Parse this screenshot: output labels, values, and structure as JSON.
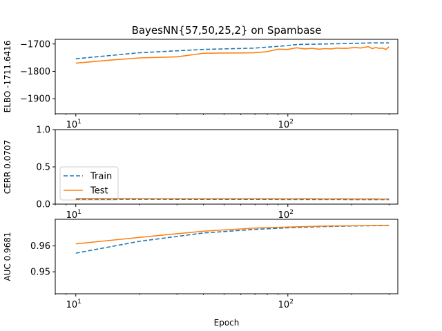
{
  "chart_data": {
    "title": "BayesNN{57,50,25,2} on Spambase",
    "xlabel": "Epoch",
    "xscale": "log",
    "xlim": [
      8,
      330
    ],
    "xticks": [
      {
        "value": 10,
        "base": "10",
        "exp": "1"
      },
      {
        "value": 100,
        "base": "10",
        "exp": "2"
      }
    ],
    "legend": {
      "placement": "center-left",
      "panel": 1,
      "entries": [
        {
          "label": "Train",
          "style": "dashed",
          "color": "#1f77b4"
        },
        {
          "label": "Test",
          "style": "solid",
          "color": "#ff7f0e"
        }
      ]
    },
    "panels": [
      {
        "type": "line",
        "ylabel": "ELBO -1711.6416",
        "ylim": [
          -1955,
          -1683
        ],
        "yticks": [
          -1700,
          -1800,
          -1900
        ],
        "yticklabels": [
          "−1700",
          "−1800",
          "−1900"
        ],
        "series": [
          {
            "key": "train",
            "color": "#1f77b4",
            "style": "dashed",
            "x": [
              10,
              20,
              40,
              70,
              100,
              110,
              150,
              200,
              250,
              300
            ],
            "y": [
              -1754,
              -1732,
              -1720,
              -1715,
              -1706,
              -1702,
              -1700,
              -1698,
              -1696,
              -1696
            ]
          },
          {
            "key": "test",
            "color": "#ff7f0e",
            "style": "solid",
            "x": [
              10,
              15,
              20,
              30,
              40,
              50,
              60,
              70,
              80,
              90,
              100,
              110,
              120,
              130,
              140,
              150,
              160,
              170,
              180,
              190,
              200,
              210,
              220,
              230,
              240,
              250,
              260,
              270,
              280,
              290,
              300
            ],
            "y": [
              -1770,
              -1758,
              -1751,
              -1747,
              -1734,
              -1733,
              -1733,
              -1732,
              -1728,
              -1719,
              -1720,
              -1714,
              -1718,
              -1716,
              -1719,
              -1717,
              -1718,
              -1715,
              -1716,
              -1716,
              -1714,
              -1713,
              -1715,
              -1712,
              -1710,
              -1717,
              -1713,
              -1716,
              -1715,
              -1720,
              -1710
            ]
          }
        ]
      },
      {
        "type": "line",
        "ylabel": "CERR 0.0707",
        "ylim": [
          0,
          1
        ],
        "yticks": [
          0,
          0.5,
          1
        ],
        "yticklabels": [
          "0.0",
          "0.5",
          "1.0"
        ],
        "series": [
          {
            "key": "train",
            "color": "#1f77b4",
            "style": "dashed",
            "x": [
              10,
              20,
              40,
              70,
              100,
              150,
              200,
              250,
              300
            ],
            "y": [
              0.065,
              0.064,
              0.063,
              0.063,
              0.062,
              0.062,
              0.061,
              0.061,
              0.061
            ]
          },
          {
            "key": "test",
            "color": "#ff7f0e",
            "style": "solid",
            "x": [
              10,
              20,
              40,
              70,
              100,
              130,
              150,
              180,
              200,
              230,
              250,
              280,
              300
            ],
            "y": [
              0.075,
              0.074,
              0.072,
              0.073,
              0.071,
              0.072,
              0.07,
              0.071,
              0.07,
              0.069,
              0.071,
              0.068,
              0.07
            ]
          }
        ]
      },
      {
        "type": "line",
        "ylabel": "AUC 0.9681",
        "ylim": [
          0.9415,
          0.9703
        ],
        "yticks": [
          0.95,
          0.96
        ],
        "yticklabels": [
          "0.95",
          "0.96"
        ],
        "series": [
          {
            "key": "train",
            "color": "#1f77b4",
            "style": "dashed",
            "x": [
              10,
              20,
              40,
              70,
              100,
              150,
              200,
              300
            ],
            "y": [
              0.9572,
              0.9618,
              0.965,
              0.9664,
              0.967,
              0.9675,
              0.9677,
              0.9679
            ]
          },
          {
            "key": "test",
            "color": "#ff7f0e",
            "style": "solid",
            "x": [
              10,
              20,
              40,
              70,
              100,
              150,
              200,
              300
            ],
            "y": [
              0.9608,
              0.9633,
              0.9657,
              0.9669,
              0.9673,
              0.9677,
              0.9678,
              0.968
            ]
          }
        ]
      }
    ]
  }
}
